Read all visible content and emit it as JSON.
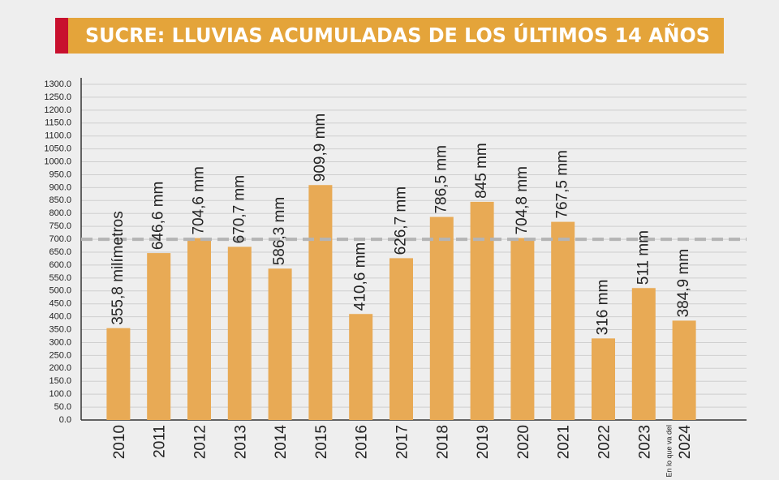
{
  "chart_data": {
    "type": "bar",
    "title": "SUCRE: LLUVIAS ACUMULADAS DE LOS ÚLTIMOS 14 AÑOS",
    "categories": [
      "2010",
      "2011",
      "2012",
      "2013",
      "2014",
      "2015",
      "2016",
      "2017",
      "2018",
      "2019",
      "2020",
      "2021",
      "2022",
      "2023",
      "2024"
    ],
    "values": [
      355.8,
      646.6,
      704.6,
      670.7,
      586.3,
      909.9,
      410.6,
      626.7,
      786.5,
      845,
      704.8,
      767.5,
      316,
      511,
      384.9
    ],
    "value_labels": [
      "355,8 milímetros",
      "646,6 mm",
      "704,6 mm",
      "670,7 mm",
      "586,3 mm",
      "909,9 mm",
      "410,6 mm",
      "626,7 mm",
      "786,5 mm",
      "845 mm",
      "704,8 mm",
      "767,5 mm",
      "316 mm",
      "511 mm",
      "384,9 mm"
    ],
    "annotation": "En lo que va del",
    "color": "#e8aa55",
    "reference_value": 700,
    "ylim": [
      0,
      1300
    ],
    "yticks": [
      {
        "value": 0,
        "label": "0.0"
      },
      {
        "value": 50,
        "label": "50.0"
      },
      {
        "value": 100,
        "label": "100.0"
      },
      {
        "value": 150,
        "label": "150.0"
      },
      {
        "value": 200,
        "label": "200.0"
      },
      {
        "value": 250,
        "label": "250.0"
      },
      {
        "value": 300,
        "label": "300.0"
      },
      {
        "value": 350,
        "label": "350.0"
      },
      {
        "value": 400,
        "label": "400.0"
      },
      {
        "value": 450,
        "label": "450.0"
      },
      {
        "value": 500,
        "label": "500.0"
      },
      {
        "value": 550,
        "label": "550.0"
      },
      {
        "value": 600,
        "label": "600.0"
      },
      {
        "value": 650,
        "label": "650.0"
      },
      {
        "value": 700,
        "label": "700.0"
      },
      {
        "value": 750,
        "label": "750.0"
      },
      {
        "value": 800,
        "label": "800.0"
      },
      {
        "value": 850,
        "label": "850.0"
      },
      {
        "value": 900,
        "label": "900.0"
      },
      {
        "value": 950,
        "label": "950.0"
      },
      {
        "value": 1000,
        "label": "1000.0"
      },
      {
        "value": 1050,
        "label": "1050.0"
      },
      {
        "value": 1100,
        "label": "1100.0"
      },
      {
        "value": 1150,
        "label": "1150.0"
      },
      {
        "value": 1200,
        "label": "1200.0"
      },
      {
        "value": 1250,
        "label": "1250.0"
      },
      {
        "value": 1300,
        "label": "1300.0"
      }
    ],
    "grid": true
  }
}
